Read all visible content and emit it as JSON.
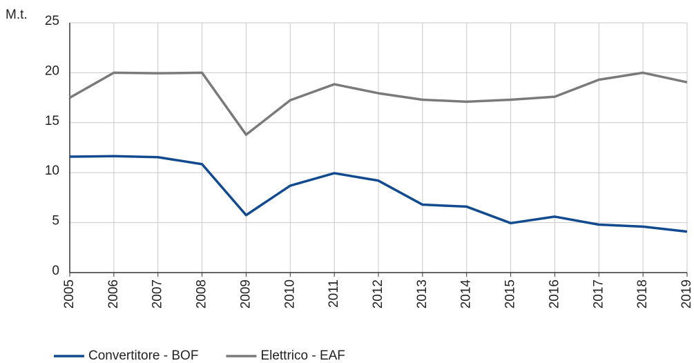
{
  "chart_data": {
    "type": "line",
    "y_label": "M.t.",
    "categories": [
      "2005",
      "2006",
      "2007",
      "2008",
      "2009",
      "2010",
      "2011",
      "2012",
      "2013",
      "2014",
      "2015",
      "2016",
      "2017",
      "2018",
      "2019"
    ],
    "series": [
      {
        "name": "Convertitore - BOF",
        "color": "#114a8e",
        "values": [
          11.6,
          11.65,
          11.55,
          10.85,
          5.75,
          8.7,
          9.95,
          9.2,
          6.8,
          6.6,
          4.95,
          5.6,
          4.8,
          4.6,
          4.1
        ]
      },
      {
        "name": "Elettrico - EAF",
        "color": "#7a7a7a",
        "values": [
          17.5,
          20.0,
          19.95,
          20.0,
          13.8,
          17.25,
          18.85,
          17.95,
          17.3,
          17.1,
          17.3,
          17.6,
          19.3,
          20.0,
          19.05
        ]
      }
    ],
    "ylim": [
      0,
      25
    ],
    "yticks": [
      0,
      5,
      10,
      15,
      20,
      25
    ],
    "grid": true,
    "legend": "bottom"
  }
}
